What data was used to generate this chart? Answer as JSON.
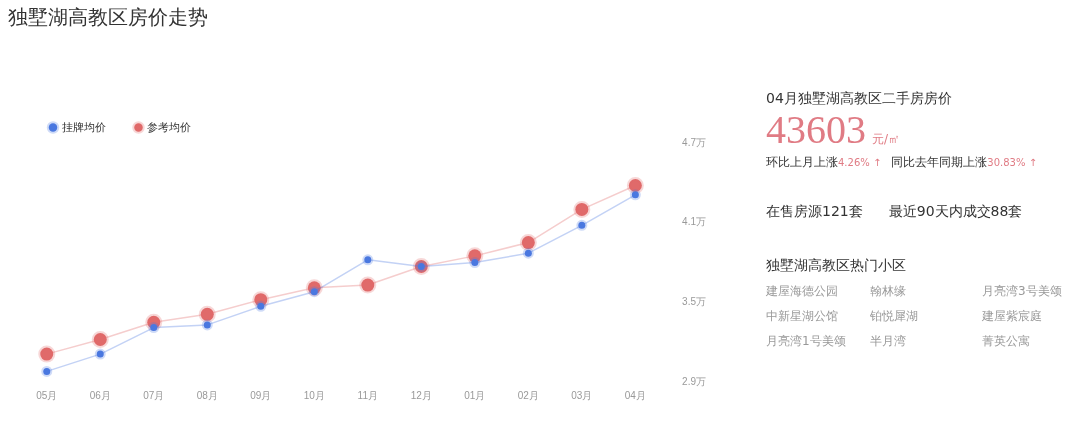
{
  "chart_data": [
    {
      "type": "line",
      "title": "独墅湖高教区房价走势",
      "categories": [
        "05月",
        "06月",
        "07月",
        "08月",
        "09月",
        "10月",
        "11月",
        "12月",
        "01月",
        "02月",
        "03月",
        "04月"
      ],
      "series": [
        {
          "name": "挂牌均价",
          "color": "#4a78e0",
          "values": [
            2.98,
            3.11,
            3.31,
            3.33,
            3.47,
            3.58,
            3.82,
            3.77,
            3.8,
            3.87,
            4.08,
            4.31
          ]
        },
        {
          "name": "参考均价",
          "color": "#e06a6a",
          "values": [
            3.11,
            3.22,
            3.35,
            3.41,
            3.52,
            3.61,
            3.63,
            3.77,
            3.85,
            3.95,
            4.2,
            4.38
          ]
        }
      ],
      "ylim": [
        2.9,
        4.7
      ],
      "yticks": [
        {
          "value": 2.9,
          "label": "2.9万"
        },
        {
          "value": 3.5,
          "label": "3.5万"
        },
        {
          "value": 4.1,
          "label": "4.1万"
        },
        {
          "value": 4.7,
          "label": "4.7万"
        }
      ],
      "grid": false,
      "legend": "top left",
      "marker": "circle"
    },
    {
      "type": "other",
      "title": "04月独墅湖高教区二手房房价",
      "annotations": [
        "43603",
        "元/㎡",
        "环比上月上涨",
        "4.26% ↑",
        "同比去年同期上涨",
        "30.83% ↑",
        "在售房源121套",
        "最近90天内成交88套",
        "独墅湖高教区热门小区",
        "建屋海德公园",
        "翰林缘",
        "月亮湾3号美颂",
        "中新星湖公馆",
        "铂悦犀湖",
        "建屋紫宸庭",
        "月亮湾1号美颂",
        "半月湾",
        "菁英公寓"
      ]
    }
  ]
}
